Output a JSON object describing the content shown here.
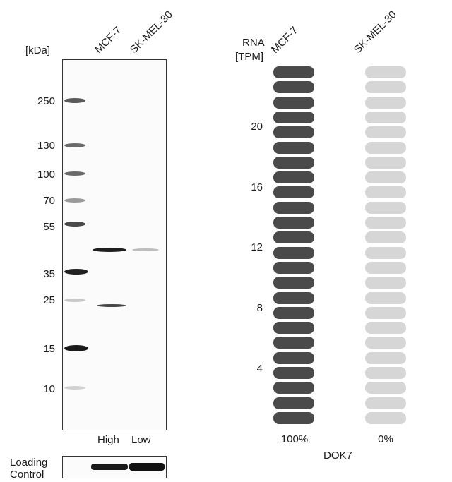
{
  "western_blot": {
    "unit_label": "[kDa]",
    "lanes": [
      "MCF-7",
      "SK-MEL-30"
    ],
    "mw_markers": [
      "250",
      "130",
      "100",
      "70",
      "55",
      "35",
      "25",
      "15",
      "10"
    ],
    "expression_labels": [
      "High",
      "Low"
    ],
    "loading_control_label": "Loading\nControl"
  },
  "rna_panel": {
    "axis_title_line1": "RNA",
    "axis_title_line2": "[TPM]",
    "samples": [
      "MCF-7",
      "SK-MEL-30"
    ],
    "ticks": [
      "20",
      "16",
      "12",
      "8",
      "4"
    ],
    "percentages": [
      "100%",
      "0%"
    ],
    "gene": "DOK7",
    "colors": {
      "filled": "#4a4a4a",
      "empty": "#d6d6d6"
    }
  },
  "chart_data": {
    "type": "bar",
    "categories": [
      "MCF-7",
      "SK-MEL-30"
    ],
    "values": [
      100,
      0
    ],
    "ylabel": "RNA [TPM]",
    "ticks": [
      4,
      8,
      12,
      16,
      20
    ],
    "xlabel": "DOK7"
  }
}
